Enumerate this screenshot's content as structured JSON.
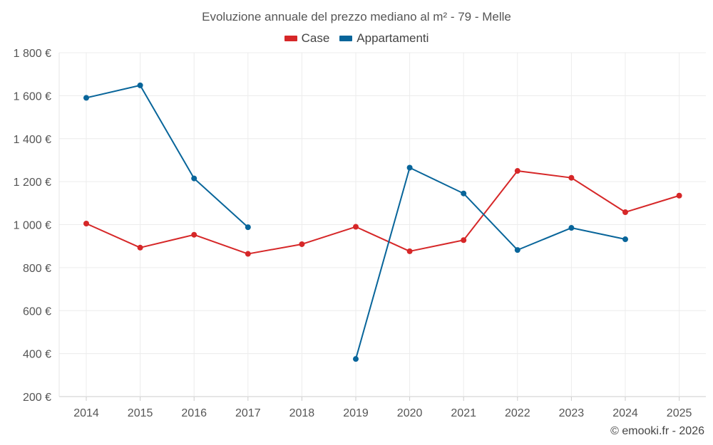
{
  "chart_data": {
    "type": "line",
    "title": "Evoluzione annuale del prezzo mediano al m² - 79 - Melle",
    "categories": [
      "2014",
      "2015",
      "2016",
      "2017",
      "2018",
      "2019",
      "2020",
      "2021",
      "2022",
      "2023",
      "2024",
      "2025"
    ],
    "y_ticks": [
      "200 €",
      "400 €",
      "600 €",
      "800 €",
      "1 000 €",
      "1 200 €",
      "1 400 €",
      "1 600 €",
      "1 800 €"
    ],
    "ylim": [
      200,
      1800
    ],
    "grid": true,
    "legend_position": "top-center",
    "series": [
      {
        "name": "Case",
        "color": "#d62728",
        "values": [
          1005,
          893,
          953,
          864,
          909,
          990,
          876,
          928,
          1250,
          1218,
          1058,
          1135
        ]
      },
      {
        "name": "Appartamenti",
        "color": "#08659a",
        "values": [
          1590,
          1648,
          1215,
          988,
          null,
          375,
          1265,
          1145,
          882,
          985,
          932,
          null
        ]
      }
    ]
  },
  "footer": "© emooki.fr - 2026"
}
